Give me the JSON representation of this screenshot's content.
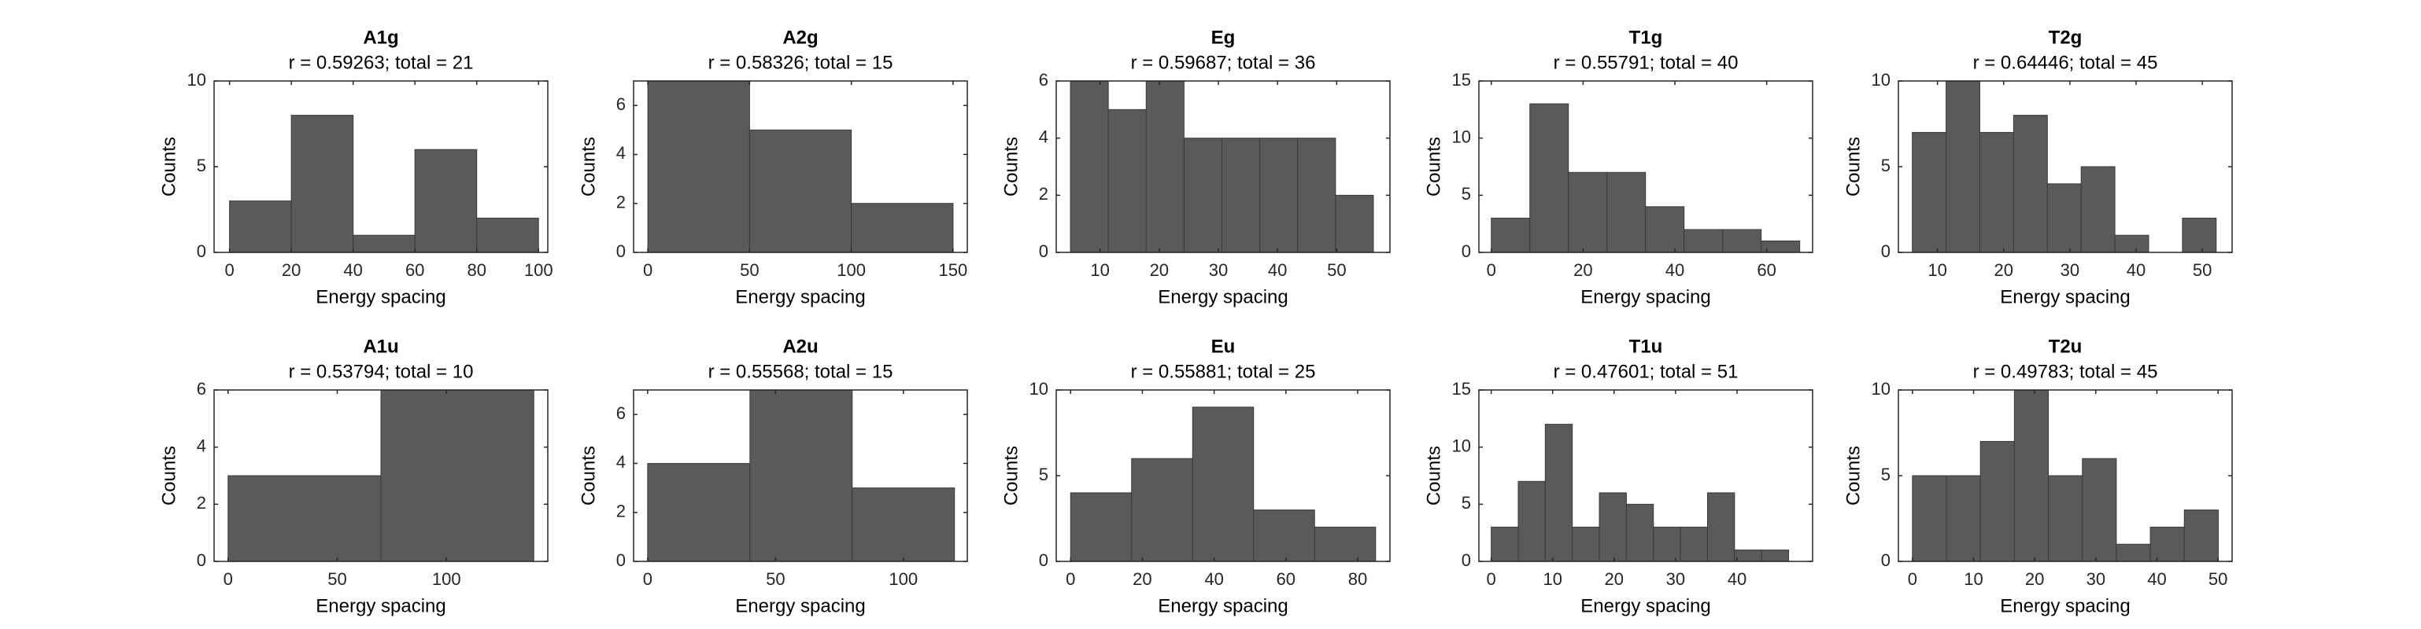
{
  "chart_data": [
    {
      "type": "histogram",
      "title": "A1g",
      "subtitle": "r = 0.59263; total = 21",
      "xlabel": "Energy spacing",
      "ylabel": "Counts",
      "color": "#5a5a5a",
      "bins": [
        0,
        20,
        40,
        60,
        80,
        100
      ],
      "counts": [
        3,
        8,
        1,
        6,
        2
      ],
      "xlim": [
        -5,
        103
      ],
      "ylim": [
        0,
        10
      ],
      "xticks": [
        0,
        20,
        40,
        60,
        80,
        100
      ],
      "yticks": [
        0,
        5,
        10
      ]
    },
    {
      "type": "histogram",
      "title": "A2g",
      "subtitle": "r = 0.58326; total = 15",
      "xlabel": "Energy spacing",
      "ylabel": "Counts",
      "color": "#5a5a5a",
      "bins": [
        0,
        50,
        100,
        150
      ],
      "counts": [
        7,
        5,
        2
      ],
      "xlim": [
        -7,
        157
      ],
      "ylim": [
        0,
        7
      ],
      "xticks": [
        0,
        50,
        100,
        150
      ],
      "yticks": [
        0,
        2,
        4,
        6
      ]
    },
    {
      "type": "histogram",
      "title": "Eg",
      "subtitle": "r = 0.59687; total = 36",
      "xlabel": "Energy spacing",
      "ylabel": "Counts",
      "color": "#5a5a5a",
      "bins": [
        5,
        11.4,
        17.8,
        24.2,
        30.6,
        37,
        43.4,
        49.8,
        56.2
      ],
      "counts": [
        6,
        5,
        6,
        4,
        4,
        4,
        4,
        2
      ],
      "xlim": [
        2.6,
        59
      ],
      "ylim": [
        0,
        6
      ],
      "xticks": [
        10,
        20,
        30,
        40,
        50
      ],
      "yticks": [
        0,
        2,
        4,
        6
      ]
    },
    {
      "type": "histogram",
      "title": "T1g",
      "subtitle": "r = 0.55791; total = 40",
      "xlabel": "Energy spacing",
      "ylabel": "Counts",
      "color": "#5a5a5a",
      "bins": [
        0,
        8.4,
        16.8,
        25.2,
        33.6,
        42,
        50.4,
        58.8,
        67.2
      ],
      "counts": [
        3,
        13,
        7,
        7,
        4,
        2,
        2,
        1
      ],
      "xlim": [
        -2.7,
        70
      ],
      "ylim": [
        0,
        15
      ],
      "xticks": [
        0,
        20,
        40,
        60
      ],
      "yticks": [
        0,
        5,
        10,
        15
      ]
    },
    {
      "type": "histogram",
      "title": "T2g",
      "subtitle": "r = 0.64446; total = 45",
      "xlabel": "Energy spacing",
      "ylabel": "Counts",
      "color": "#5a5a5a",
      "bins": [
        6.2,
        11.3,
        16.4,
        21.5,
        26.6,
        31.7,
        36.8,
        41.9,
        47,
        52.1
      ],
      "counts": [
        7,
        10,
        7,
        8,
        4,
        5,
        1,
        0,
        2
      ],
      "xlim": [
        4.1,
        54.5
      ],
      "ylim": [
        0,
        10
      ],
      "xticks": [
        10,
        20,
        30,
        40,
        50
      ],
      "yticks": [
        0,
        5,
        10
      ]
    },
    {
      "type": "histogram",
      "title": "A1u",
      "subtitle": "r = 0.53794; total = 10",
      "xlabel": "Energy spacing",
      "ylabel": "Counts",
      "color": "#5a5a5a",
      "bins": [
        0,
        70,
        140
      ],
      "counts": [
        3,
        6
      ],
      "xlim": [
        -6.4,
        146.4
      ],
      "ylim": [
        0,
        6
      ],
      "xticks": [
        0,
        50,
        100
      ],
      "yticks": [
        0,
        2,
        4,
        6
      ]
    },
    {
      "type": "histogram",
      "title": "A2u",
      "subtitle": "r = 0.55568; total = 15",
      "xlabel": "Energy spacing",
      "ylabel": "Counts",
      "color": "#5a5a5a",
      "bins": [
        0,
        40,
        80,
        120
      ],
      "counts": [
        4,
        7,
        3
      ],
      "xlim": [
        -5.5,
        125
      ],
      "ylim": [
        0,
        7
      ],
      "xticks": [
        0,
        50,
        100
      ],
      "yticks": [
        0,
        2,
        4,
        6
      ]
    },
    {
      "type": "histogram",
      "title": "Eu",
      "subtitle": "r = 0.55881; total = 25",
      "xlabel": "Energy spacing",
      "ylabel": "Counts",
      "color": "#5a5a5a",
      "bins": [
        0,
        17,
        34,
        51,
        68,
        85
      ],
      "counts": [
        4,
        6,
        9,
        3,
        2
      ],
      "xlim": [
        -4,
        89
      ],
      "ylim": [
        0,
        10
      ],
      "xticks": [
        0,
        20,
        40,
        60,
        80
      ],
      "yticks": [
        0,
        5,
        10
      ]
    },
    {
      "type": "histogram",
      "title": "T1u",
      "subtitle": "r = 0.47601; total = 51",
      "xlabel": "Energy spacing",
      "ylabel": "Counts",
      "color": "#5a5a5a",
      "bins": [
        0,
        4.4,
        8.8,
        13.2,
        17.6,
        22,
        26.4,
        30.8,
        35.2,
        39.6,
        44,
        48.4
      ],
      "counts": [
        3,
        7,
        12,
        3,
        6,
        5,
        3,
        3,
        6,
        1,
        1
      ],
      "xlim": [
        -2,
        52.3
      ],
      "ylim": [
        0,
        15
      ],
      "xticks": [
        0,
        10,
        20,
        30,
        40
      ],
      "yticks": [
        0,
        5,
        10,
        15
      ]
    },
    {
      "type": "histogram",
      "title": "T2u",
      "subtitle": "r = 0.49783; total = 45",
      "xlabel": "Energy spacing",
      "ylabel": "Counts",
      "color": "#5a5a5a",
      "bins": [
        0,
        5.56,
        11.12,
        16.68,
        22.24,
        27.8,
        33.36,
        38.92,
        44.48,
        50.04
      ],
      "counts": [
        5,
        5,
        7,
        10,
        5,
        6,
        1,
        2,
        3
      ],
      "xlim": [
        -2.3,
        52.3
      ],
      "ylim": [
        0,
        10
      ],
      "xticks": [
        0,
        10,
        20,
        30,
        40,
        50
      ],
      "yticks": [
        0,
        5,
        10
      ]
    }
  ]
}
